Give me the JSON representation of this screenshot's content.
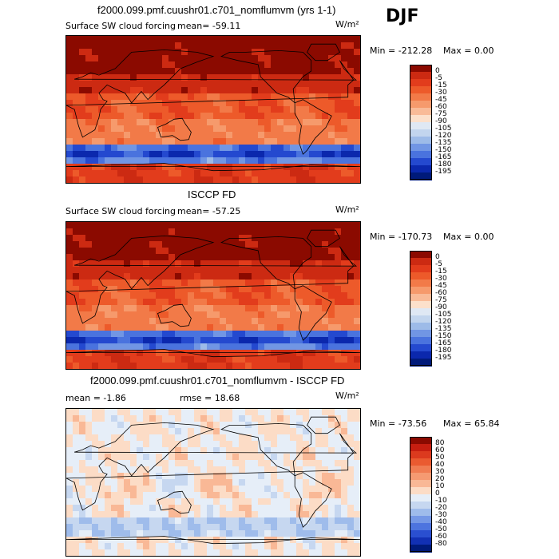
{
  "season": "DJF",
  "chart_data": [
    {
      "type": "heatmap",
      "title": "f2000.099.pmf.cuushr01.c701_nomflumvm (yrs 1-1)",
      "variable": "Surface SW cloud forcing",
      "mean_text": "mean=  -59.11",
      "units": "W/m²",
      "min_text": "Min = -212.28",
      "max_text": "Max =    0.00",
      "min": -212.28,
      "max": 0.0,
      "levels": [
        "0",
        "-5",
        "-15",
        "-30",
        "-45",
        "-60",
        "-75",
        "-90",
        "-105",
        "-120",
        "-135",
        "-150",
        "-165",
        "-180",
        "-195"
      ],
      "colors": [
        "#8b0a00",
        "#cc2a12",
        "#e23c1c",
        "#ed5a2a",
        "#f27a48",
        "#f69a6c",
        "#f9bb98",
        "#fce0cb",
        "#dfe8f4",
        "#c2d5ee",
        "#9dbbe8",
        "#7196e4",
        "#4a73de",
        "#2449cf",
        "#0b28ad",
        "#001a7a"
      ]
    },
    {
      "type": "heatmap",
      "title": "ISCCP FD",
      "variable": "Surface SW cloud forcing",
      "mean_text": "mean=  -57.25",
      "units": "W/m²",
      "min_text": "Min = -170.73",
      "max_text": "Max =    0.00",
      "min": -170.73,
      "max": 0.0,
      "levels": [
        "0",
        "-5",
        "-15",
        "-30",
        "-45",
        "-60",
        "-75",
        "-90",
        "-105",
        "-120",
        "-135",
        "-150",
        "-165",
        "-180",
        "-195"
      ],
      "colors": [
        "#8b0a00",
        "#cc2a12",
        "#e23c1c",
        "#ed5a2a",
        "#f27a48",
        "#f69a6c",
        "#f9bb98",
        "#fce0cb",
        "#dfe8f4",
        "#c2d5ee",
        "#9dbbe8",
        "#7196e4",
        "#4a73de",
        "#2449cf",
        "#0b28ad",
        "#001a7a"
      ]
    },
    {
      "type": "heatmap",
      "title": "f2000.099.pmf.cuushr01.c701_nomflumvm - ISCCP FD",
      "mean_text": "mean =   -1.86",
      "rmse_text": "rmse =   18.68",
      "units": "W/m²",
      "min_text": "Min = -73.56",
      "max_text": "Max =  65.84",
      "min": -73.56,
      "max": 65.84,
      "levels": [
        "80",
        "60",
        "50",
        "40",
        "30",
        "20",
        "10",
        "0",
        "-10",
        "-20",
        "-30",
        "-40",
        "-50",
        "-60",
        "-80"
      ],
      "colors": [
        "#8b0a00",
        "#c61e10",
        "#dc3a1e",
        "#ea5a30",
        "#f07c52",
        "#f59a72",
        "#f9b896",
        "#fcdcc6",
        "#e6eef8",
        "#c6d7f0",
        "#9fbceb",
        "#7598e6",
        "#4d74df",
        "#2a4fd0",
        "#1230b4",
        "#001a7a"
      ]
    }
  ]
}
